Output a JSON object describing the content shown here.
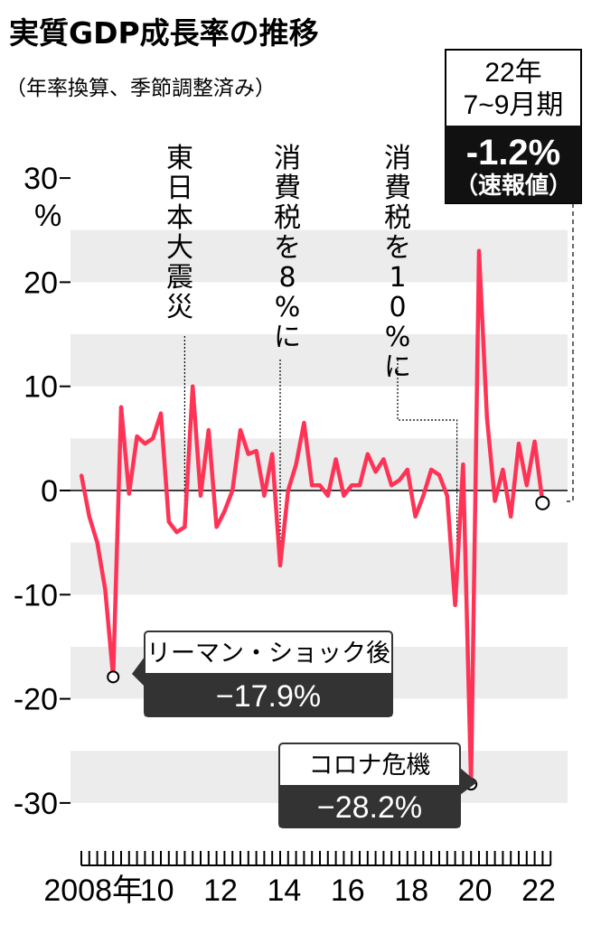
{
  "title": "実質GDP成長率の推移",
  "subtitle": "（年率換算、季節調整済み）",
  "colors": {
    "line": "#ff3355",
    "band": "#ececec",
    "box_dark": "#333333"
  },
  "y_unit": "%",
  "badge": {
    "period_year": "22年",
    "period_q": "7~9月期",
    "value": "-1.2%",
    "note": "（速報値）"
  },
  "events": [
    {
      "text": "東日本大震災"
    },
    {
      "text": "消費税を8%に"
    },
    {
      "text": "消費税を10%に"
    }
  ],
  "callouts": [
    {
      "label": "リーマン・ショック後",
      "value": "−17.9%"
    },
    {
      "label": "コロナ危機",
      "value": "−28.2%"
    }
  ],
  "chart_data": {
    "type": "line",
    "ylim": [
      -30,
      30
    ],
    "y_ticks": [
      30,
      20,
      10,
      0,
      -10,
      -20,
      -30
    ],
    "y_tick_labels": [
      "30",
      "20",
      "10",
      "0",
      "-10",
      "-20",
      "-30"
    ],
    "x_tick_labels": [
      "2008年",
      "10",
      "12",
      "14",
      "16",
      "18",
      "20",
      "22"
    ],
    "x_tick_years": [
      2008,
      2010,
      2012,
      2014,
      2016,
      2018,
      2020,
      2022
    ],
    "grid": "horizontal bands",
    "series": [
      {
        "x": [
          "2008-Q1",
          "2008-Q2",
          "2008-Q3",
          "2008-Q4",
          "2009-Q1",
          "2009-Q2",
          "2009-Q3",
          "2009-Q4",
          "2010-Q1",
          "2010-Q2",
          "2010-Q3",
          "2010-Q4",
          "2011-Q1",
          "2011-Q2",
          "2011-Q3",
          "2011-Q4",
          "2012-Q1",
          "2012-Q2",
          "2012-Q3",
          "2012-Q4",
          "2013-Q1",
          "2013-Q2",
          "2013-Q3",
          "2013-Q4",
          "2014-Q1",
          "2014-Q2",
          "2014-Q3",
          "2014-Q4",
          "2015-Q1",
          "2015-Q2",
          "2015-Q3",
          "2015-Q4",
          "2016-Q1",
          "2016-Q2",
          "2016-Q3",
          "2016-Q4",
          "2017-Q1",
          "2017-Q2",
          "2017-Q3",
          "2017-Q4",
          "2018-Q1",
          "2018-Q2",
          "2018-Q3",
          "2018-Q4",
          "2019-Q1",
          "2019-Q2",
          "2019-Q3",
          "2019-Q4",
          "2020-Q1",
          "2020-Q2",
          "2020-Q3",
          "2020-Q4",
          "2021-Q1",
          "2021-Q2",
          "2021-Q3",
          "2021-Q4",
          "2022-Q1",
          "2022-Q2",
          "2022-Q3"
        ],
        "values": [
          1.5,
          -2.5,
          -5.0,
          -9.5,
          -17.9,
          8.0,
          -0.3,
          5.2,
          4.5,
          5.0,
          7.4,
          -3.0,
          -4.0,
          -3.5,
          10.0,
          -0.5,
          5.8,
          -3.5,
          -2.0,
          0.0,
          5.8,
          3.5,
          3.8,
          -0.5,
          3.5,
          -7.2,
          0.0,
          2.5,
          6.5,
          0.5,
          0.5,
          -0.5,
          3.0,
          -0.5,
          0.5,
          0.5,
          3.5,
          1.8,
          3.0,
          0.5,
          1.0,
          2.0,
          -2.5,
          -0.5,
          2.0,
          1.5,
          -0.5,
          -11.0,
          2.5,
          -28.2,
          23.0,
          7.0,
          -1.0,
          2.0,
          -2.5,
          4.5,
          0.5,
          4.7,
          -1.2
        ]
      }
    ]
  }
}
